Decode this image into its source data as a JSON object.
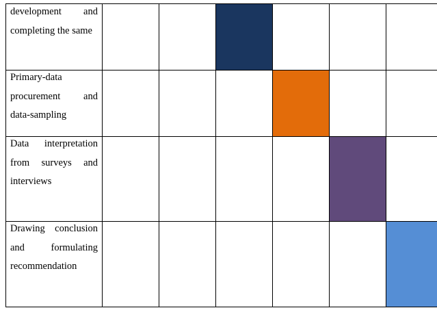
{
  "rows": [
    {
      "task": "development and completing the same",
      "active_period": 3,
      "active_color": "#1a365f"
    },
    {
      "task": "Primary-data procurement and data-sampling",
      "active_period": 4,
      "active_color": "#e36c0a"
    },
    {
      "task": "Data interpretation from surveys and interviews",
      "active_period": 5,
      "active_color": "#604a7b"
    },
    {
      "task": "Drawing conclusion and formulating recommendation",
      "active_period": 6,
      "active_color": "#558ed5"
    }
  ],
  "period_count": 6
}
